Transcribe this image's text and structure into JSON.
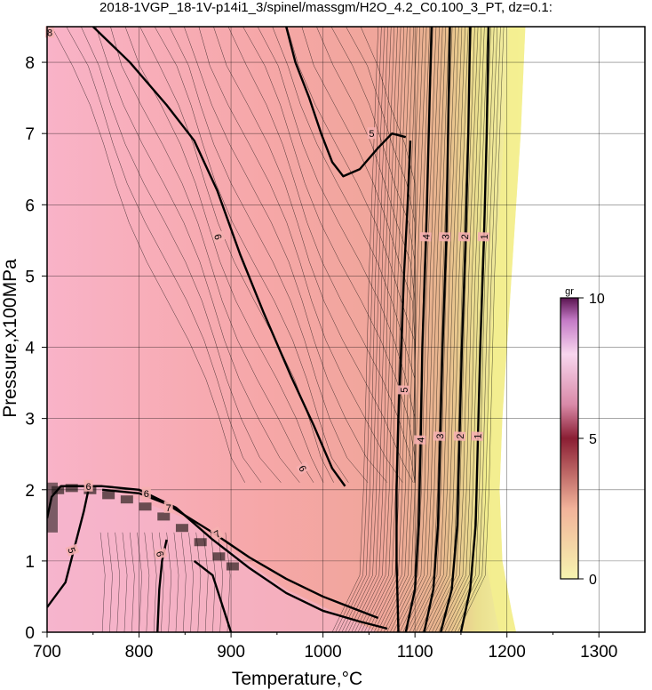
{
  "chart_data": {
    "type": "heatmap",
    "title": "2018-1VGP_18-1V-p14i1_3/spinel/massgm/H2O_4.2_C0.100_3_PT, dz=0.1:",
    "xlabel": "Temperature,°C",
    "ylabel": "Pressure,x100MPa",
    "xlim": [
      700,
      1350
    ],
    "ylim": [
      0,
      8.5
    ],
    "x_ticks": [
      700,
      800,
      900,
      1000,
      1100,
      1200,
      1300
    ],
    "y_ticks": [
      0,
      1,
      2,
      3,
      4,
      5,
      6,
      7,
      8
    ],
    "grid": true,
    "colorbar": {
      "label": "gr",
      "ticks": [
        0,
        5,
        10
      ],
      "range": [
        0,
        10
      ],
      "placement": "right-inside",
      "colors": [
        "#f6f4b0",
        "#f0a0a0",
        "#6a1a3a",
        "#f8d8f0",
        "#8a2a7a"
      ]
    },
    "colors": {
      "field_pink": "#f7aab8",
      "field_salmon": "#f4a89e",
      "field_edge_yellow": "#f2ef9a",
      "contour": "#000000"
    },
    "contours": [
      {
        "label": "6",
        "points": [
          [
            750,
            8.5
          ],
          [
            790,
            8.0
          ],
          [
            830,
            7.4
          ],
          [
            860,
            6.9
          ],
          [
            885,
            6.2
          ],
          [
            910,
            5.3
          ],
          [
            935,
            4.5
          ],
          [
            965,
            3.6
          ],
          [
            990,
            2.9
          ],
          [
            1010,
            2.3
          ],
          [
            1024,
            2.05
          ]
        ]
      },
      {
        "label": "5",
        "points": [
          [
            960,
            8.5
          ],
          [
            970,
            8.0
          ],
          [
            985,
            7.5
          ],
          [
            998,
            7.0
          ],
          [
            1010,
            6.6
          ],
          [
            1022,
            6.4
          ],
          [
            1040,
            6.5
          ],
          [
            1060,
            6.8
          ],
          [
            1075,
            7.0
          ],
          [
            1090,
            6.95
          ]
        ]
      },
      {
        "label": "5",
        "points": [
          [
            1095,
            6.9
          ],
          [
            1092,
            6.0
          ],
          [
            1088,
            5.0
          ],
          [
            1085,
            4.0
          ],
          [
            1082,
            3.0
          ],
          [
            1080,
            2.0
          ],
          [
            1080,
            1.0
          ],
          [
            1082,
            0.0
          ]
        ]
      },
      {
        "label": "4",
        "points": [
          [
            1118,
            8.5
          ],
          [
            1115,
            7.0
          ],
          [
            1112,
            5.5
          ],
          [
            1108,
            4.0
          ],
          [
            1106,
            2.5
          ],
          [
            1104,
            1.5
          ],
          [
            1100,
            0.6
          ],
          [
            1090,
            0.0
          ]
        ]
      },
      {
        "label": "3",
        "points": [
          [
            1138,
            8.5
          ],
          [
            1136,
            7.0
          ],
          [
            1134,
            5.5
          ],
          [
            1130,
            4.0
          ],
          [
            1127,
            2.5
          ],
          [
            1125,
            1.5
          ],
          [
            1120,
            0.6
          ],
          [
            1110,
            0.0
          ]
        ]
      },
      {
        "label": "2",
        "points": [
          [
            1160,
            8.5
          ],
          [
            1158,
            7.0
          ],
          [
            1155,
            5.5
          ],
          [
            1151,
            4.0
          ],
          [
            1148,
            2.5
          ],
          [
            1146,
            1.5
          ],
          [
            1140,
            0.6
          ],
          [
            1128,
            0.0
          ]
        ]
      },
      {
        "label": "1",
        "points": [
          [
            1180,
            8.5
          ],
          [
            1178,
            7.0
          ],
          [
            1175,
            5.5
          ],
          [
            1171,
            4.0
          ],
          [
            1168,
            2.5
          ],
          [
            1166,
            1.5
          ],
          [
            1160,
            0.6
          ],
          [
            1150,
            0.0
          ]
        ]
      },
      {
        "label": "6",
        "points": [
          [
            700,
            1.6
          ],
          [
            705,
            1.9
          ],
          [
            715,
            2.05
          ],
          [
            760,
            2.05
          ],
          [
            800,
            2.0
          ],
          [
            840,
            1.75
          ],
          [
            880,
            1.3
          ],
          [
            920,
            0.9
          ],
          [
            960,
            0.55
          ],
          [
            1000,
            0.3
          ],
          [
            1040,
            0.15
          ],
          [
            1070,
            0.05
          ]
        ]
      },
      {
        "label": "7",
        "points": [
          [
            760,
            2.0
          ],
          [
            800,
            1.95
          ],
          [
            830,
            1.8
          ],
          [
            880,
            1.4
          ],
          [
            920,
            1.05
          ],
          [
            960,
            0.75
          ],
          [
            1000,
            0.5
          ],
          [
            1040,
            0.3
          ],
          [
            1060,
            0.2
          ]
        ]
      },
      {
        "label": "5",
        "points": [
          [
            700,
            0.35
          ],
          [
            720,
            0.7
          ],
          [
            730,
            1.2
          ],
          [
            740,
            1.7
          ],
          [
            745,
            2.0
          ]
        ]
      },
      {
        "label": "6",
        "points": [
          [
            820,
            0.0
          ],
          [
            822,
            0.6
          ],
          [
            825,
            1.0
          ],
          [
            830,
            1.3
          ]
        ]
      },
      {
        "label": "",
        "points": [
          [
            900,
            0.0
          ],
          [
            890,
            0.4
          ],
          [
            880,
            0.8
          ],
          [
            860,
            1.0
          ]
        ]
      }
    ],
    "contour_labels": [
      {
        "text": "6",
        "x": 886,
        "y": 5.55,
        "rot": 72
      },
      {
        "text": "5",
        "x": 1053,
        "y": 7.0,
        "rot": 0
      },
      {
        "text": "5",
        "x": 1088,
        "y": 3.4,
        "rot": -88
      },
      {
        "text": "4",
        "x": 1112,
        "y": 5.55,
        "rot": -88
      },
      {
        "text": "3",
        "x": 1133,
        "y": 5.55,
        "rot": -88
      },
      {
        "text": "2",
        "x": 1154,
        "y": 5.55,
        "rot": -88
      },
      {
        "text": "1",
        "x": 1175,
        "y": 5.55,
        "rot": -88
      },
      {
        "text": "4",
        "x": 1106,
        "y": 2.7,
        "rot": -88
      },
      {
        "text": "3",
        "x": 1127,
        "y": 2.75,
        "rot": -88
      },
      {
        "text": "2",
        "x": 1149,
        "y": 2.75,
        "rot": -88
      },
      {
        "text": "1",
        "x": 1168,
        "y": 2.75,
        "rot": -88
      },
      {
        "text": "6",
        "x": 978,
        "y": 2.3,
        "rot": 60
      },
      {
        "text": "6",
        "x": 745,
        "y": 2.05,
        "rot": 0
      },
      {
        "text": "6",
        "x": 808,
        "y": 1.95,
        "rot": 0
      },
      {
        "text": "7",
        "x": 832,
        "y": 1.75,
        "rot": 0
      },
      {
        "text": "7",
        "x": 885,
        "y": 1.38,
        "rot": -30
      },
      {
        "text": "5",
        "x": 727,
        "y": 1.15,
        "rot": 70
      },
      {
        "text": "6",
        "x": 823,
        "y": 1.1,
        "rot": 75
      },
      {
        "text": "8",
        "x": 703,
        "y": 8.42,
        "rot": 0
      }
    ]
  }
}
